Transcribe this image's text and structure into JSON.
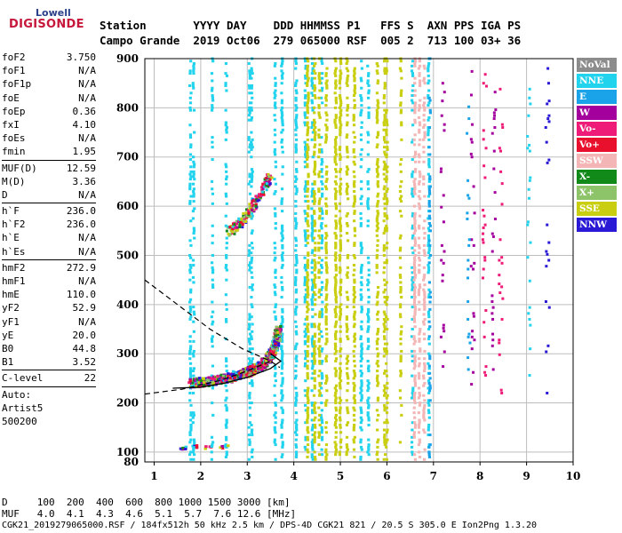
{
  "logo": {
    "top": "Lowell",
    "bottom": "DIGISONDE"
  },
  "header": {
    "line1": "Station       YYYY DAY    DDD HHMMSS P1   FFS S  AXN PPS IGA PS",
    "line2": "Campo Grande  2019 Oct06  279 065000 RSF  005 2  713 100 03+ 36"
  },
  "params": {
    "group1": [
      {
        "k": "foF2",
        "v": "3.750"
      },
      {
        "k": "foF1",
        "v": "N/A"
      },
      {
        "k": "foF1p",
        "v": "N/A"
      },
      {
        "k": "foE",
        "v": "N/A"
      },
      {
        "k": "foEp",
        "v": "0.36"
      },
      {
        "k": "fxI",
        "v": "4.10"
      },
      {
        "k": "foEs",
        "v": "N/A"
      },
      {
        "k": "fmin",
        "v": "1.95"
      }
    ],
    "group2": [
      {
        "k": "MUF(D)",
        "v": "12.59"
      },
      {
        "k": "M(D)",
        "v": "3.36"
      },
      {
        "k": "D",
        "v": "N/A"
      }
    ],
    "group3": [
      {
        "k": "h`F",
        "v": "236.0"
      },
      {
        "k": "h`F2",
        "v": "236.0"
      },
      {
        "k": "h`E",
        "v": "N/A"
      },
      {
        "k": "h`Es",
        "v": "N/A"
      }
    ],
    "group4": [
      {
        "k": "hmF2",
        "v": "272.9"
      },
      {
        "k": "hmF1",
        "v": "N/A"
      },
      {
        "k": "hmE",
        "v": "110.0"
      },
      {
        "k": "yF2",
        "v": "52.9"
      },
      {
        "k": "yF1",
        "v": "N/A"
      },
      {
        "k": "yE",
        "v": "20.0"
      },
      {
        "k": "B0",
        "v": "44.8"
      },
      {
        "k": "B1",
        "v": "3.52"
      }
    ],
    "group5": [
      {
        "k": "C-level",
        "v": "22"
      }
    ],
    "auto_label": "Auto:",
    "auto_name": "Artist5",
    "auto_code": "500200"
  },
  "legend": [
    {
      "label": "NoVal",
      "color": "#8c8c8c"
    },
    {
      "label": "NNE",
      "color": "#22d3ee"
    },
    {
      "label": "E",
      "color": "#1aa3e8"
    },
    {
      "label": "W",
      "color": "#a3009e"
    },
    {
      "label": "Vo-",
      "color": "#ee1c78"
    },
    {
      "label": "Vo+",
      "color": "#e8102c"
    },
    {
      "label": "SSW",
      "color": "#f3b5b5"
    },
    {
      "label": "X-",
      "color": "#118a1a"
    },
    {
      "label": "X+",
      "color": "#8dc46a"
    },
    {
      "label": "SSE",
      "color": "#c9cf10"
    },
    {
      "label": "NNW",
      "color": "#2a1ad6"
    }
  ],
  "bottom": {
    "line1": "D     100  200  400  600  800 1000 1500 3000 [km]",
    "line2": "MUF   4.0  4.1  4.3  4.6  5.1  5.7  7.6 12.6 [MHz]"
  },
  "footer": "CGK21_2019279065000.RSF / 184fx512h 50 kHz 2.5 km / DPS-4D CGK21 821 / 20.5 S 305.0 E Ion2Png 1.3.20",
  "chart_data": {
    "type": "scatter",
    "x_label": "",
    "y_label": "",
    "xlim": [
      0.8,
      10
    ],
    "ylim": [
      80,
      900
    ],
    "x_ticks": [
      1,
      2,
      3,
      4,
      5,
      6,
      7,
      8,
      9,
      10
    ],
    "y_ticks": [
      100,
      200,
      300,
      400,
      500,
      600,
      700,
      800,
      900
    ],
    "grid": true,
    "trace_F_echo": [
      [
        1.8,
        236
      ],
      [
        2.2,
        240
      ],
      [
        2.6,
        247
      ],
      [
        2.9,
        255
      ],
      [
        3.1,
        262
      ],
      [
        3.3,
        272
      ],
      [
        3.45,
        285
      ],
      [
        3.55,
        300
      ],
      [
        3.62,
        320
      ],
      [
        3.68,
        345
      ]
    ],
    "trace_F2_multihop": [
      [
        2.6,
        548
      ],
      [
        2.8,
        560
      ],
      [
        3.0,
        580
      ],
      [
        3.2,
        610
      ],
      [
        3.4,
        640
      ],
      [
        3.5,
        660
      ]
    ],
    "es_trace": [
      [
        1.6,
        108
      ],
      [
        1.9,
        112
      ],
      [
        2.2,
        110
      ],
      [
        2.5,
        110
      ]
    ],
    "profile_solid": [
      [
        1.4,
        230
      ],
      [
        2.0,
        232
      ],
      [
        2.5,
        240
      ],
      [
        3.0,
        252
      ],
      [
        3.5,
        270
      ],
      [
        3.72,
        285
      ],
      [
        3.5,
        300
      ]
    ],
    "profile_dashed": [
      [
        0.8,
        450
      ],
      [
        1.5,
        400
      ],
      [
        2.2,
        350
      ],
      [
        2.9,
        310
      ],
      [
        3.5,
        285
      ],
      [
        3.7,
        272
      ]
    ],
    "dashed_lower": [
      [
        0.8,
        218
      ],
      [
        1.6,
        228
      ],
      [
        2.4,
        245
      ],
      [
        3.0,
        265
      ],
      [
        3.5,
        285
      ]
    ]
  }
}
